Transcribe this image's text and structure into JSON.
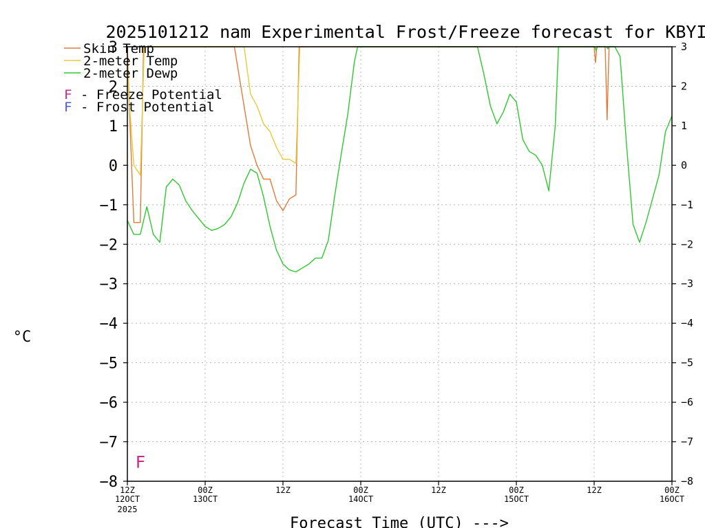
{
  "chart_data": {
    "type": "line",
    "title": "2025101212 nam Experimental Frost/Freeze forecast for KBYI",
    "ylabel": "°C",
    "xlabel": "Forecast Time (UTC) --->",
    "ylim": [
      -8,
      3
    ],
    "xlim": [
      0,
      84
    ],
    "yticks": [
      3,
      2,
      1,
      0,
      -1,
      -2,
      -3,
      -4,
      -5,
      -6,
      -7,
      -8
    ],
    "xticks": [
      {
        "x": 0,
        "line1": "12Z",
        "line2": "12OCT",
        "line3": "2025"
      },
      {
        "x": 12,
        "line1": "00Z",
        "line2": "13OCT",
        "line3": ""
      },
      {
        "x": 24,
        "line1": "12Z",
        "line2": "",
        "line3": ""
      },
      {
        "x": 36,
        "line1": "00Z",
        "line2": "14OCT",
        "line3": ""
      },
      {
        "x": 48,
        "line1": "12Z",
        "line2": "",
        "line3": ""
      },
      {
        "x": 60,
        "line1": "00Z",
        "line2": "15OCT",
        "line3": ""
      },
      {
        "x": 72,
        "line1": "12Z",
        "line2": "",
        "line3": ""
      },
      {
        "x": 84,
        "line1": "00Z",
        "line2": "16OCT",
        "line3": ""
      }
    ],
    "legend": [
      {
        "label": "Skin Temp",
        "color": "#e07b39"
      },
      {
        "label": "2-meter Temp",
        "color": "#e8c93a"
      },
      {
        "label": "2-meter Dewp",
        "color": "#2ec82e"
      }
    ],
    "potential_legend": [
      {
        "symbol": "F",
        "text": "- Freeze Potential",
        "color": "#d0258a"
      },
      {
        "symbol": "F",
        "text": "- Frost Potential",
        "color": "#4a5bd6"
      }
    ],
    "markers": [
      {
        "symbol": "F",
        "x": 2,
        "y": -7.5,
        "color": "#d0258a"
      }
    ],
    "series": [
      {
        "name": "Skin Temp",
        "color": "#e07b39",
        "points": [
          [
            0,
            3
          ],
          [
            0.3,
            1.5
          ],
          [
            1,
            -1.45
          ],
          [
            2,
            -1.45
          ],
          [
            2.5,
            3
          ],
          [
            16.5,
            3
          ],
          [
            18,
            1.5
          ],
          [
            19,
            0.5
          ],
          [
            20,
            0
          ],
          [
            21,
            -0.35
          ],
          [
            22,
            -0.35
          ],
          [
            23,
            -0.9
          ],
          [
            24,
            -1.15
          ],
          [
            25,
            -0.85
          ],
          [
            26,
            -0.75
          ],
          [
            26.5,
            3
          ],
          [
            72,
            3
          ],
          [
            72.2,
            2.6
          ],
          [
            72.4,
            3
          ],
          [
            73.7,
            3
          ],
          [
            74,
            1.15
          ],
          [
            74.3,
            3
          ]
        ]
      },
      {
        "name": "2-meter Temp",
        "color": "#e8c93a",
        "points": [
          [
            0,
            3
          ],
          [
            0.2,
            1.8
          ],
          [
            1,
            0
          ],
          [
            2,
            -0.25
          ],
          [
            2.6,
            3
          ],
          [
            18,
            3
          ],
          [
            19,
            1.8
          ],
          [
            20,
            1.5
          ],
          [
            21,
            1.05
          ],
          [
            22,
            0.85
          ],
          [
            23,
            0.45
          ],
          [
            24,
            0.15
          ],
          [
            25,
            0.15
          ],
          [
            26,
            0.05
          ],
          [
            26.6,
            3
          ]
        ]
      },
      {
        "name": "2-meter Dewp",
        "color": "#2ec82e",
        "points": [
          [
            0,
            -1.4
          ],
          [
            1,
            -1.75
          ],
          [
            2,
            -1.75
          ],
          [
            3,
            -1.05
          ],
          [
            4,
            -1.75
          ],
          [
            5,
            -1.95
          ],
          [
            6,
            -0.55
          ],
          [
            7,
            -0.35
          ],
          [
            8,
            -0.5
          ],
          [
            9,
            -0.9
          ],
          [
            10,
            -1.15
          ],
          [
            11,
            -1.35
          ],
          [
            12,
            -1.55
          ],
          [
            13,
            -1.65
          ],
          [
            14,
            -1.6
          ],
          [
            15,
            -1.5
          ],
          [
            16,
            -1.3
          ],
          [
            17,
            -0.95
          ],
          [
            18,
            -0.45
          ],
          [
            19,
            -0.1
          ],
          [
            20,
            -0.2
          ],
          [
            21,
            -0.8
          ],
          [
            22,
            -1.55
          ],
          [
            23,
            -2.15
          ],
          [
            24,
            -2.5
          ],
          [
            25,
            -2.65
          ],
          [
            26,
            -2.7
          ],
          [
            27,
            -2.6
          ],
          [
            28,
            -2.5
          ],
          [
            29,
            -2.35
          ],
          [
            30,
            -2.35
          ],
          [
            31,
            -1.9
          ],
          [
            32,
            -0.75
          ],
          [
            33,
            0.3
          ],
          [
            34,
            1.3
          ],
          [
            35,
            2.6
          ],
          [
            35.5,
            3
          ],
          [
            54,
            3
          ],
          [
            55,
            2.3
          ],
          [
            56,
            1.5
          ],
          [
            57,
            1.05
          ],
          [
            58,
            1.35
          ],
          [
            59,
            1.8
          ],
          [
            60,
            1.6
          ],
          [
            61,
            0.65
          ],
          [
            62,
            0.35
          ],
          [
            63,
            0.25
          ],
          [
            64,
            0
          ],
          [
            65,
            -0.65
          ],
          [
            66,
            1
          ],
          [
            66.5,
            3
          ],
          [
            72.1,
            3
          ],
          [
            72.3,
            2.9
          ],
          [
            72.5,
            3
          ],
          [
            73.9,
            3
          ],
          [
            74.1,
            2.95
          ],
          [
            74.3,
            3
          ],
          [
            75.2,
            3
          ],
          [
            76,
            2.75
          ],
          [
            77,
            0.5
          ],
          [
            78,
            -1.5
          ],
          [
            79,
            -1.95
          ],
          [
            80,
            -1.45
          ],
          [
            81,
            -0.85
          ],
          [
            82,
            -0.25
          ],
          [
            83,
            0.85
          ],
          [
            84,
            1.25
          ]
        ]
      }
    ]
  }
}
